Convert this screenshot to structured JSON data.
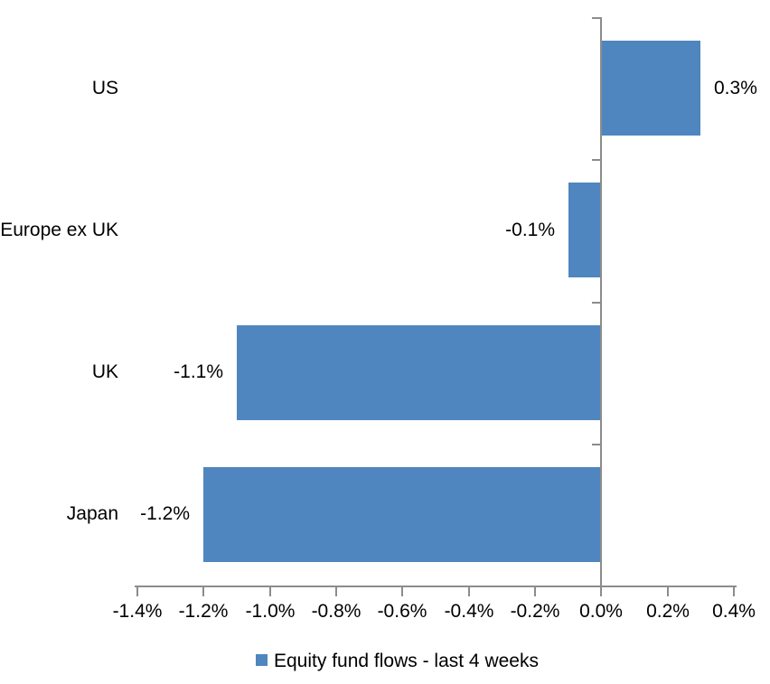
{
  "chart_data": {
    "type": "bar",
    "orientation": "horizontal",
    "title": "",
    "xlabel": "",
    "ylabel": "",
    "categories": [
      "US",
      "Europe ex UK",
      "UK",
      "Japan"
    ],
    "series": [
      {
        "name": "Equity fund flows - last 4 weeks",
        "values": [
          0.3,
          -0.1,
          -1.1,
          -1.2
        ],
        "data_labels": [
          "0.3%",
          "-0.1%",
          "-1.1%",
          "-1.2%"
        ]
      }
    ],
    "value_unit": "%",
    "xlim": [
      -1.4,
      0.4
    ],
    "x_tick_step": 0.2,
    "x_tick_labels": [
      "-1.4%",
      "-1.2%",
      "-1.0%",
      "-0.8%",
      "-0.6%",
      "-0.4%",
      "-0.2%",
      "0.0%",
      "0.2%",
      "0.4%"
    ],
    "grid": false,
    "legend": {
      "position": "bottom",
      "entries": [
        {
          "label": "Equity fund flows - last 4 weeks",
          "swatch": "square"
        }
      ]
    },
    "colors": {
      "bar": "#4F86BF",
      "axis": "#8C8C8C",
      "text": "#000000",
      "background": "#FFFFFF"
    }
  }
}
